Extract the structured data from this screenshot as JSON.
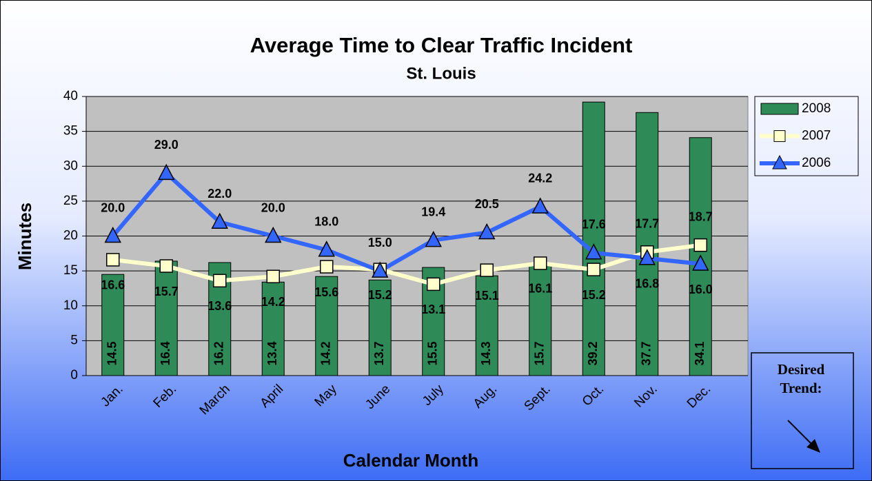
{
  "chart_data": {
    "type": "bar_line",
    "title": "Average Time to Clear Traffic Incident",
    "subtitle": "St. Louis",
    "x_label": "Calendar Month",
    "y_label": "Minutes",
    "categories": [
      "Jan.",
      "Feb.",
      "March",
      "April",
      "May",
      "June",
      "July",
      "Aug.",
      "Sept.",
      "Oct.",
      "Nov.",
      "Dec."
    ],
    "series": [
      {
        "name": "2008",
        "type": "bar",
        "color": "#2e8b57",
        "values": [
          14.5,
          16.4,
          16.2,
          13.4,
          14.2,
          13.7,
          15.5,
          14.3,
          15.7,
          39.2,
          37.7,
          34.1
        ]
      },
      {
        "name": "2007",
        "type": "line",
        "marker": "square",
        "color": "#ffffcc",
        "values": [
          16.6,
          15.7,
          13.6,
          14.2,
          15.6,
          15.2,
          13.1,
          15.1,
          16.1,
          15.2,
          17.7,
          18.7
        ]
      },
      {
        "name": "2006",
        "type": "line",
        "marker": "triangle",
        "color": "#3366ff",
        "values": [
          20,
          29,
          22,
          20,
          18,
          15,
          19.4,
          20.5,
          24.2,
          17.6,
          16.8,
          16
        ],
        "value_labels": [
          "20.0",
          "29.0",
          "22.0",
          "20.0",
          "18.0",
          "15.0",
          "19.4",
          "20.5",
          "24.2",
          "17.6",
          "16.8",
          "16.0"
        ]
      }
    ],
    "ylim": [
      0,
      40
    ],
    "yticks": [
      0,
      5,
      10,
      15,
      20,
      25,
      30,
      35,
      40
    ],
    "grid": true,
    "legend": "right",
    "annotation": [
      "Desired",
      "Trend:"
    ]
  }
}
